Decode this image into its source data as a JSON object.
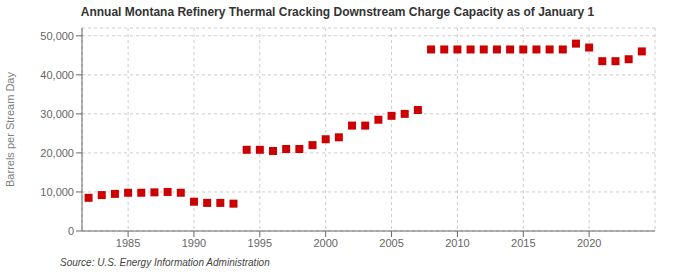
{
  "chart_data": {
    "type": "scatter",
    "title": "Annual Montana Refinery Thermal Cracking Downstream Charge Capacity as of January 1",
    "ylabel": "Barrels per Stream Day",
    "annotations": [
      "Source: U.S. Energy Information Administration"
    ],
    "x": [
      1982,
      1983,
      1984,
      1985,
      1986,
      1987,
      1988,
      1989,
      1990,
      1991,
      1992,
      1993,
      1994,
      1995,
      1996,
      1997,
      1998,
      1999,
      2000,
      2001,
      2002,
      2003,
      2004,
      2005,
      2006,
      2007,
      2008,
      2009,
      2010,
      2011,
      2012,
      2013,
      2014,
      2015,
      2016,
      2017,
      2018,
      2019,
      2020,
      2021,
      2022,
      2023,
      2024
    ],
    "values": [
      8500,
      9200,
      9500,
      9800,
      9800,
      9900,
      10000,
      9800,
      7500,
      7200,
      7200,
      7000,
      20800,
      20800,
      20500,
      21000,
      21000,
      22000,
      23500,
      24000,
      27000,
      27000,
      28500,
      29500,
      30000,
      31000,
      46500,
      46500,
      46500,
      46500,
      46500,
      46500,
      46500,
      46500,
      46500,
      46500,
      46500,
      48000,
      47000,
      43500,
      43500,
      44000,
      46000
    ],
    "color": "#cc0000",
    "marker": "square",
    "grid": true,
    "xlim": [
      1981.5,
      2025
    ],
    "xticks": [
      1985,
      1990,
      1995,
      2000,
      2005,
      2010,
      2015,
      2020
    ],
    "ylim": [
      0,
      52000
    ],
    "yticks": [
      0,
      {
        "value": 10000,
        "label": "10,000"
      },
      {
        "value": 20000,
        "label": "20,000"
      },
      {
        "value": 30000,
        "label": "30,000"
      },
      {
        "value": 40000,
        "label": "40,000"
      },
      {
        "value": 50000,
        "label": "50,000"
      }
    ]
  }
}
